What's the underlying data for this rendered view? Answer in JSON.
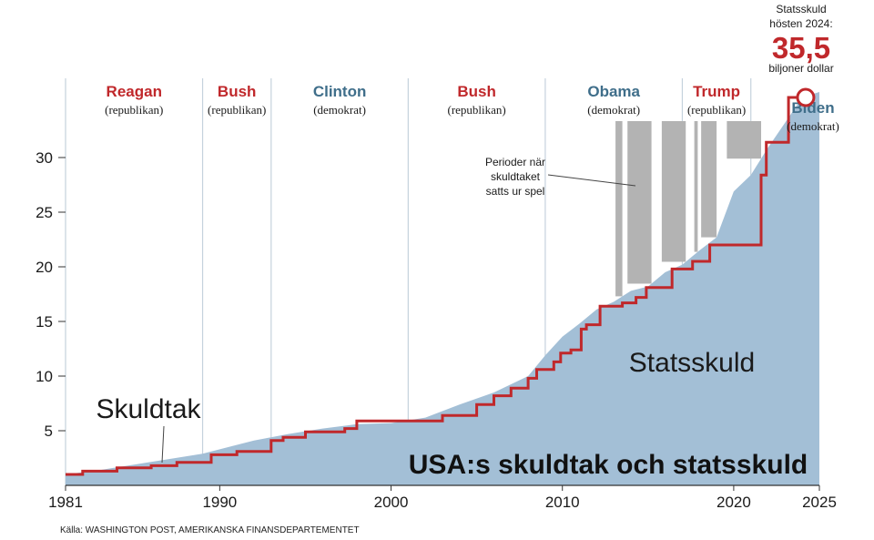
{
  "chart_data": {
    "type": "area",
    "title": "USA:s skuldtak och statsskuld",
    "source": "Källa: WASHINGTON POST, AMERIKANSKA FINANSDEPARTEMENTET",
    "xlim": [
      1981,
      2025
    ],
    "ylim": [
      0,
      36
    ],
    "x_ticks": [
      1981,
      1990,
      2000,
      2010,
      2020,
      2025
    ],
    "y_ticks": [
      5,
      10,
      15,
      20,
      25,
      30
    ],
    "colors": {
      "debt_area": "#a3bfd6",
      "ceiling_line": "#c0282b",
      "republican": "#c0282b",
      "democrat": "#3f6e8a",
      "suspension": "#b3b3b3",
      "grid": "#c5d2dd"
    },
    "series": [
      {
        "name": "Statsskuld",
        "kind": "area",
        "x": [
          1981,
          1983,
          1985,
          1987,
          1989,
          1990,
          1992,
          1994,
          1996,
          1998,
          2000,
          2002,
          2004,
          2006,
          2008,
          2009,
          2010,
          2011,
          2012,
          2013,
          2014,
          2015,
          2016,
          2017,
          2018,
          2019,
          2020,
          2021,
          2022,
          2023,
          2024,
          2025
        ],
        "y": [
          1.0,
          1.4,
          1.9,
          2.4,
          2.9,
          3.3,
          4.1,
          4.7,
          5.2,
          5.6,
          5.7,
          6.2,
          7.4,
          8.5,
          10.0,
          11.9,
          13.6,
          14.8,
          16.1,
          16.8,
          17.8,
          18.2,
          19.5,
          20.2,
          21.5,
          22.7,
          26.9,
          28.4,
          30.9,
          33.2,
          35.5,
          36.0
        ]
      },
      {
        "name": "Skuldtak",
        "kind": "step",
        "x": [
          1981,
          1982,
          1984,
          1986,
          1987.5,
          1989.5,
          1991,
          1993,
          1993.7,
          1995,
          1997.3,
          1998,
          2002,
          2003,
          2005,
          2006,
          2007,
          2008,
          2008.5,
          2009.5,
          2009.9,
          2010.5,
          2011.1,
          2011.4,
          2012.2,
          2013.5,
          2014.3,
          2014.9,
          2016.4,
          2017.6,
          2018.6,
          2020.6,
          2021.6,
          2021.9,
          2023.2,
          2024.2
        ],
        "y": [
          1.0,
          1.3,
          1.6,
          1.8,
          2.1,
          2.8,
          3.1,
          4.1,
          4.4,
          4.9,
          5.2,
          5.9,
          5.9,
          6.4,
          7.4,
          8.2,
          8.9,
          9.8,
          10.6,
          11.3,
          12.1,
          12.4,
          14.3,
          14.7,
          16.4,
          16.7,
          17.2,
          18.1,
          19.8,
          20.5,
          22.0,
          22.0,
          28.4,
          31.4,
          35.5,
          35.5
        ]
      }
    ],
    "area_label": "Statsskuld",
    "line_label": "Skuldtak",
    "presidents": [
      {
        "name": "Reagan",
        "party": "(republikan)",
        "start": 1981,
        "end": 1989,
        "side": "R"
      },
      {
        "name": "Bush",
        "party": "(republikan)",
        "start": 1989,
        "end": 1993,
        "side": "R"
      },
      {
        "name": "Clinton",
        "party": "(demokrat)",
        "start": 1993,
        "end": 2001,
        "side": "D"
      },
      {
        "name": "Bush",
        "party": "(republikan)",
        "start": 2001,
        "end": 2009,
        "side": "R"
      },
      {
        "name": "Obama",
        "party": "(demokrat)",
        "start": 2009,
        "end": 2017,
        "side": "D"
      },
      {
        "name": "Trump",
        "party": "(republikan)",
        "start": 2017,
        "end": 2021,
        "side": "R"
      },
      {
        "name": "Biden",
        "party": "(demokrat)",
        "start": 2021,
        "end": 2025,
        "side": "D"
      }
    ],
    "suspensions": [
      {
        "start": 2013.1,
        "end": 2013.5
      },
      {
        "start": 2013.8,
        "end": 2015.2
      },
      {
        "start": 2015.8,
        "end": 2017.2
      },
      {
        "start": 2017.7,
        "end": 2017.9
      },
      {
        "start": 2018.1,
        "end": 2019.0
      },
      {
        "start": 2019.6,
        "end": 2021.6
      }
    ],
    "suspension_label": [
      "Perioder när",
      "skuldtaket",
      "satts ur spel"
    ],
    "callout": {
      "line1": "Statsskuld",
      "line2": "hösten 2024:",
      "value": "35,5",
      "unit": "biljoner dollar",
      "x": 2024.2,
      "y": 35.5
    }
  }
}
